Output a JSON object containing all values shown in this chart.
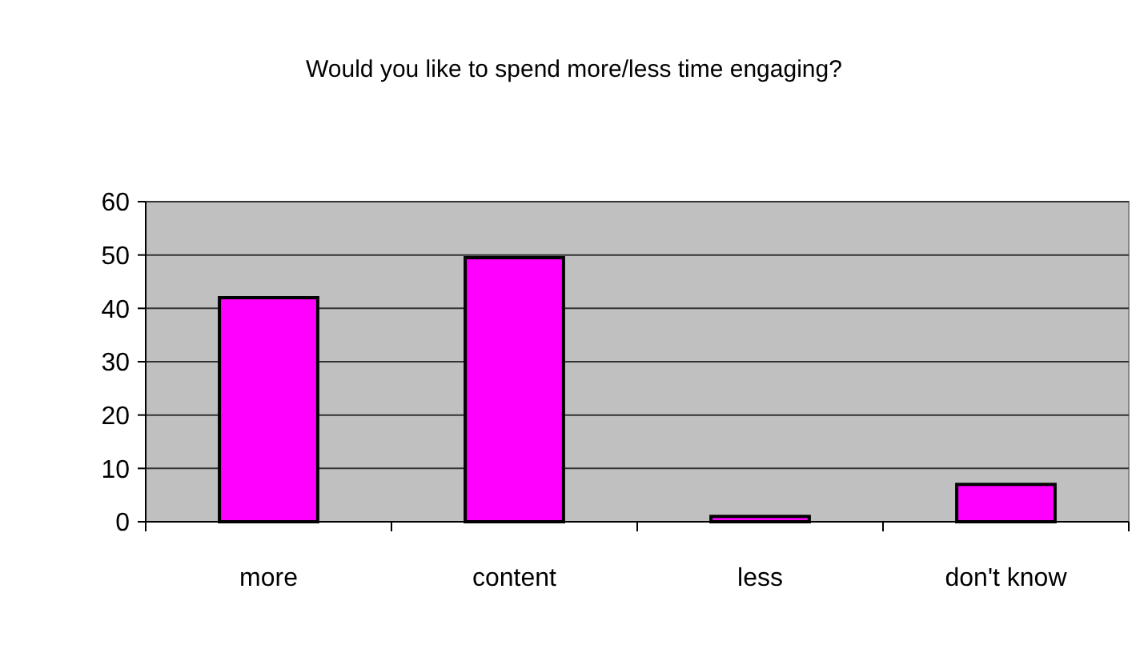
{
  "chart_data": {
    "type": "bar",
    "title": "Would you like to spend more/less time engaging?",
    "categories": [
      "more",
      "content",
      "less",
      "don't know"
    ],
    "values": [
      42,
      49.5,
      1,
      7
    ],
    "color": "#ff00ff",
    "ylim": [
      0,
      60
    ],
    "yticks": [
      0,
      10,
      20,
      30,
      40,
      50,
      60
    ],
    "grid": "y"
  }
}
